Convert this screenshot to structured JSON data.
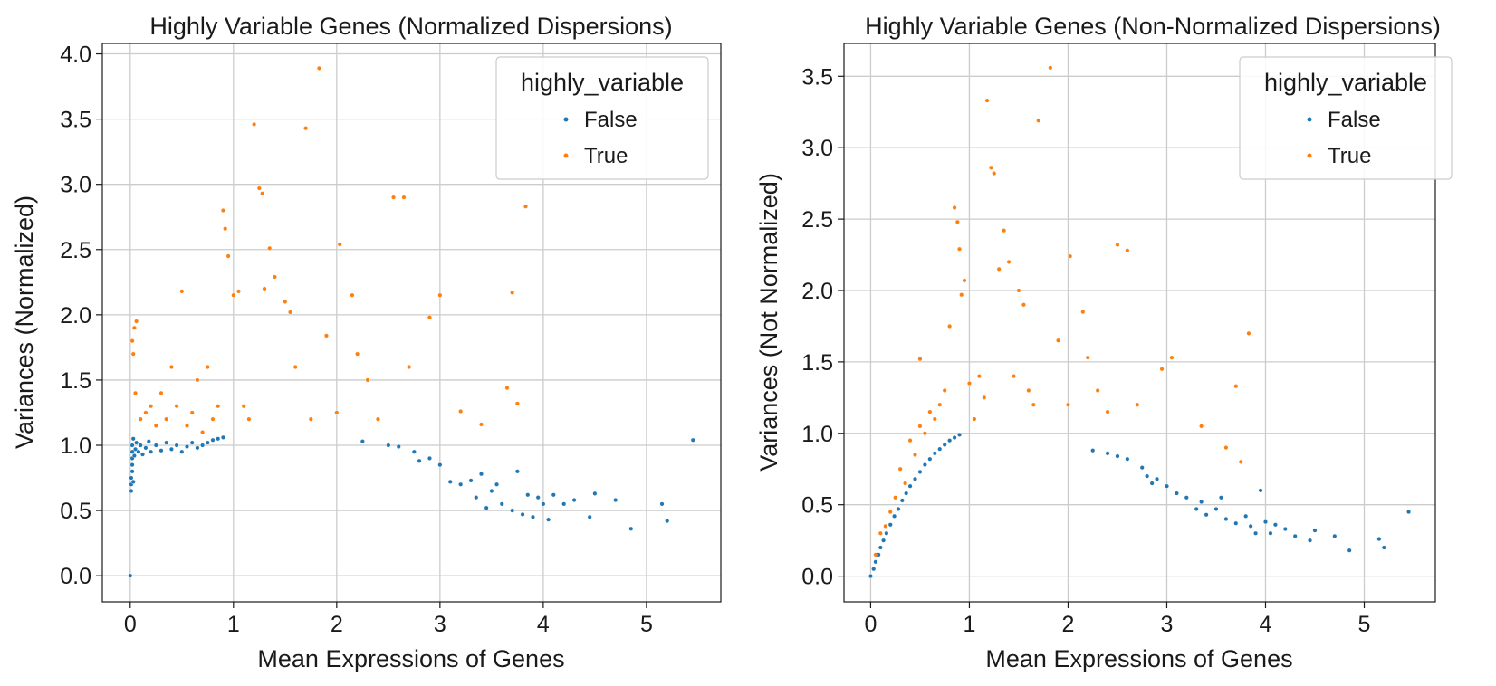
{
  "chart_data": [
    {
      "type": "scatter",
      "title": "Highly Variable Genes (Normalized Dispersions)",
      "xlabel": "Mean Expressions of Genes",
      "ylabel": "Variances (Normalized)",
      "xlim": [
        -0.27,
        5.72
      ],
      "ylim": [
        -0.2,
        4.08
      ],
      "xticks": [
        0,
        1,
        2,
        3,
        4,
        5
      ],
      "xtick_labels": [
        "0",
        "1",
        "2",
        "3",
        "4",
        "5"
      ],
      "yticks": [
        0,
        0.5,
        1,
        1.5,
        2,
        2.5,
        3,
        3.5,
        4
      ],
      "ytick_labels": [
        "0.0",
        "0.5",
        "1.0",
        "1.5",
        "2.0",
        "2.5",
        "3.0",
        "3.5",
        "4.0"
      ],
      "grid": true,
      "legend": {
        "title": "highly_variable",
        "placement": "top-right"
      },
      "series": [
        {
          "name": "False",
          "color": "#1f77b4",
          "points": [
            [
              0,
              0
            ],
            [
              0.01,
              0.65
            ],
            [
              0.01,
              0.7
            ],
            [
              0.01,
              0.75
            ],
            [
              0.02,
              0.8
            ],
            [
              0.02,
              0.85
            ],
            [
              0.02,
              0.9
            ],
            [
              0.02,
              0.95
            ],
            [
              0.02,
              1.0
            ],
            [
              0.03,
              1.05
            ],
            [
              0.03,
              0.72
            ],
            [
              0.04,
              0.92
            ],
            [
              0.05,
              0.97
            ],
            [
              0.06,
              1.02
            ],
            [
              0.08,
              0.95
            ],
            [
              0.1,
              1.0
            ],
            [
              0.12,
              0.93
            ],
            [
              0.15,
              0.98
            ],
            [
              0.18,
              1.03
            ],
            [
              0.2,
              0.95
            ],
            [
              0.25,
              1.0
            ],
            [
              0.3,
              0.96
            ],
            [
              0.35,
              1.02
            ],
            [
              0.4,
              0.97
            ],
            [
              0.45,
              1.0
            ],
            [
              0.5,
              0.95
            ],
            [
              0.55,
              0.99
            ],
            [
              0.6,
              1.02
            ],
            [
              0.65,
              0.98
            ],
            [
              0.7,
              1.0
            ],
            [
              0.75,
              1.02
            ],
            [
              0.8,
              1.04
            ],
            [
              0.85,
              1.05
            ],
            [
              0.9,
              1.06
            ],
            [
              2.25,
              1.03
            ],
            [
              2.5,
              1.0
            ],
            [
              2.6,
              0.99
            ],
            [
              2.75,
              0.95
            ],
            [
              2.8,
              0.88
            ],
            [
              2.9,
              0.9
            ],
            [
              3.0,
              0.85
            ],
            [
              3.1,
              0.72
            ],
            [
              3.2,
              0.7
            ],
            [
              3.3,
              0.73
            ],
            [
              3.35,
              0.6
            ],
            [
              3.4,
              0.78
            ],
            [
              3.45,
              0.52
            ],
            [
              3.5,
              0.65
            ],
            [
              3.55,
              0.7
            ],
            [
              3.6,
              0.55
            ],
            [
              3.7,
              0.5
            ],
            [
              3.75,
              0.8
            ],
            [
              3.8,
              0.47
            ],
            [
              3.85,
              0.62
            ],
            [
              3.9,
              0.45
            ],
            [
              3.95,
              0.6
            ],
            [
              4.0,
              0.55
            ],
            [
              4.05,
              0.43
            ],
            [
              4.1,
              0.62
            ],
            [
              4.2,
              0.55
            ],
            [
              4.3,
              0.58
            ],
            [
              4.45,
              0.45
            ],
            [
              4.5,
              0.63
            ],
            [
              4.7,
              0.58
            ],
            [
              4.85,
              0.36
            ],
            [
              5.15,
              0.55
            ],
            [
              5.2,
              0.42
            ],
            [
              5.45,
              1.04
            ]
          ]
        },
        {
          "name": "True",
          "color": "#ff7f0e",
          "points": [
            [
              0.02,
              1.8
            ],
            [
              0.03,
              1.7
            ],
            [
              0.04,
              1.9
            ],
            [
              0.05,
              1.4
            ],
            [
              0.06,
              1.95
            ],
            [
              0.1,
              1.2
            ],
            [
              0.15,
              1.25
            ],
            [
              0.2,
              1.3
            ],
            [
              0.25,
              1.15
            ],
            [
              0.3,
              1.4
            ],
            [
              0.35,
              1.2
            ],
            [
              0.4,
              1.6
            ],
            [
              0.45,
              1.3
            ],
            [
              0.5,
              2.18
            ],
            [
              0.55,
              1.15
            ],
            [
              0.6,
              1.25
            ],
            [
              0.65,
              1.5
            ],
            [
              0.7,
              1.1
            ],
            [
              0.75,
              1.6
            ],
            [
              0.8,
              1.2
            ],
            [
              0.85,
              1.3
            ],
            [
              0.9,
              2.8
            ],
            [
              0.92,
              2.66
            ],
            [
              0.95,
              2.45
            ],
            [
              1.0,
              2.15
            ],
            [
              1.05,
              2.18
            ],
            [
              1.1,
              1.3
            ],
            [
              1.15,
              1.2
            ],
            [
              1.2,
              3.46
            ],
            [
              1.25,
              2.97
            ],
            [
              1.28,
              2.93
            ],
            [
              1.3,
              2.2
            ],
            [
              1.35,
              2.51
            ],
            [
              1.4,
              2.29
            ],
            [
              1.5,
              2.1
            ],
            [
              1.55,
              2.02
            ],
            [
              1.6,
              1.6
            ],
            [
              1.7,
              3.43
            ],
            [
              1.75,
              1.2
            ],
            [
              1.83,
              3.89
            ],
            [
              1.9,
              1.84
            ],
            [
              2.0,
              1.25
            ],
            [
              2.03,
              2.54
            ],
            [
              2.15,
              2.15
            ],
            [
              2.2,
              1.7
            ],
            [
              2.3,
              1.5
            ],
            [
              2.4,
              1.2
            ],
            [
              2.55,
              2.9
            ],
            [
              2.65,
              2.9
            ],
            [
              2.7,
              1.6
            ],
            [
              2.9,
              1.98
            ],
            [
              3.0,
              2.15
            ],
            [
              3.2,
              1.26
            ],
            [
              3.4,
              1.16
            ],
            [
              3.65,
              1.44
            ],
            [
              3.7,
              2.17
            ],
            [
              3.75,
              1.32
            ],
            [
              3.83,
              2.83
            ]
          ]
        }
      ]
    },
    {
      "type": "scatter",
      "title": "Highly Variable Genes (Non-Normalized Dispersions)",
      "xlabel": "Mean Expressions of Genes",
      "ylabel": "Variances (Not Normalized)",
      "xlim": [
        -0.27,
        5.72
      ],
      "ylim": [
        -0.18,
        3.73
      ],
      "xticks": [
        0,
        1,
        2,
        3,
        4,
        5
      ],
      "xtick_labels": [
        "0",
        "1",
        "2",
        "3",
        "4",
        "5"
      ],
      "yticks": [
        0,
        0.5,
        1,
        1.5,
        2,
        2.5,
        3,
        3.5
      ],
      "ytick_labels": [
        "0.0",
        "0.5",
        "1.0",
        "1.5",
        "2.0",
        "2.5",
        "3.0",
        "3.5"
      ],
      "grid": true,
      "legend": {
        "title": "highly_variable",
        "placement": "top-right"
      },
      "series": [
        {
          "name": "False",
          "color": "#1f77b4",
          "points": [
            [
              0.0,
              0.0
            ],
            [
              0.03,
              0.05
            ],
            [
              0.05,
              0.1
            ],
            [
              0.08,
              0.15
            ],
            [
              0.1,
              0.2
            ],
            [
              0.13,
              0.25
            ],
            [
              0.16,
              0.3
            ],
            [
              0.2,
              0.36
            ],
            [
              0.24,
              0.42
            ],
            [
              0.28,
              0.47
            ],
            [
              0.32,
              0.53
            ],
            [
              0.36,
              0.58
            ],
            [
              0.4,
              0.63
            ],
            [
              0.45,
              0.68
            ],
            [
              0.5,
              0.73
            ],
            [
              0.55,
              0.78
            ],
            [
              0.6,
              0.82
            ],
            [
              0.65,
              0.86
            ],
            [
              0.7,
              0.89
            ],
            [
              0.75,
              0.92
            ],
            [
              0.8,
              0.95
            ],
            [
              0.85,
              0.97
            ],
            [
              0.9,
              0.99
            ],
            [
              2.25,
              0.88
            ],
            [
              2.4,
              0.86
            ],
            [
              2.5,
              0.84
            ],
            [
              2.6,
              0.82
            ],
            [
              2.75,
              0.76
            ],
            [
              2.8,
              0.7
            ],
            [
              2.85,
              0.65
            ],
            [
              2.9,
              0.68
            ],
            [
              3.0,
              0.63
            ],
            [
              3.1,
              0.58
            ],
            [
              3.2,
              0.55
            ],
            [
              3.3,
              0.47
            ],
            [
              3.35,
              0.52
            ],
            [
              3.4,
              0.43
            ],
            [
              3.5,
              0.47
            ],
            [
              3.55,
              0.55
            ],
            [
              3.6,
              0.4
            ],
            [
              3.7,
              0.37
            ],
            [
              3.8,
              0.42
            ],
            [
              3.85,
              0.35
            ],
            [
              3.9,
              0.3
            ],
            [
              3.95,
              0.6
            ],
            [
              4.0,
              0.38
            ],
            [
              4.05,
              0.3
            ],
            [
              4.1,
              0.36
            ],
            [
              4.2,
              0.33
            ],
            [
              4.3,
              0.28
            ],
            [
              4.45,
              0.25
            ],
            [
              4.5,
              0.32
            ],
            [
              4.7,
              0.28
            ],
            [
              4.85,
              0.18
            ],
            [
              5.15,
              0.26
            ],
            [
              5.2,
              0.2
            ],
            [
              5.45,
              0.45
            ]
          ]
        },
        {
          "name": "True",
          "color": "#ff7f0e",
          "points": [
            [
              0.05,
              0.15
            ],
            [
              0.1,
              0.3
            ],
            [
              0.15,
              0.35
            ],
            [
              0.2,
              0.45
            ],
            [
              0.25,
              0.55
            ],
            [
              0.3,
              0.75
            ],
            [
              0.35,
              0.65
            ],
            [
              0.4,
              0.95
            ],
            [
              0.45,
              0.85
            ],
            [
              0.5,
              1.05
            ],
            [
              0.5,
              1.52
            ],
            [
              0.55,
              1.0
            ],
            [
              0.6,
              1.15
            ],
            [
              0.65,
              1.1
            ],
            [
              0.7,
              1.2
            ],
            [
              0.75,
              1.3
            ],
            [
              0.8,
              1.75
            ],
            [
              0.85,
              2.58
            ],
            [
              0.88,
              2.48
            ],
            [
              0.9,
              2.29
            ],
            [
              0.92,
              1.97
            ],
            [
              0.95,
              2.07
            ],
            [
              1.0,
              1.35
            ],
            [
              1.05,
              1.1
            ],
            [
              1.1,
              1.4
            ],
            [
              1.15,
              1.25
            ],
            [
              1.18,
              3.33
            ],
            [
              1.22,
              2.86
            ],
            [
              1.25,
              2.82
            ],
            [
              1.3,
              2.15
            ],
            [
              1.35,
              2.42
            ],
            [
              1.4,
              2.2
            ],
            [
              1.45,
              1.4
            ],
            [
              1.5,
              2.0
            ],
            [
              1.55,
              1.9
            ],
            [
              1.6,
              1.3
            ],
            [
              1.65,
              1.2
            ],
            [
              1.7,
              3.19
            ],
            [
              1.82,
              3.56
            ],
            [
              1.9,
              1.65
            ],
            [
              2.0,
              1.2
            ],
            [
              2.02,
              2.24
            ],
            [
              2.15,
              1.85
            ],
            [
              2.2,
              1.53
            ],
            [
              2.3,
              1.3
            ],
            [
              2.4,
              1.15
            ],
            [
              2.5,
              2.32
            ],
            [
              2.6,
              2.28
            ],
            [
              2.7,
              1.2
            ],
            [
              2.95,
              1.45
            ],
            [
              3.05,
              1.53
            ],
            [
              3.35,
              1.05
            ],
            [
              3.6,
              0.9
            ],
            [
              3.7,
              1.33
            ],
            [
              3.75,
              0.8
            ],
            [
              3.83,
              1.7
            ]
          ]
        }
      ]
    }
  ]
}
